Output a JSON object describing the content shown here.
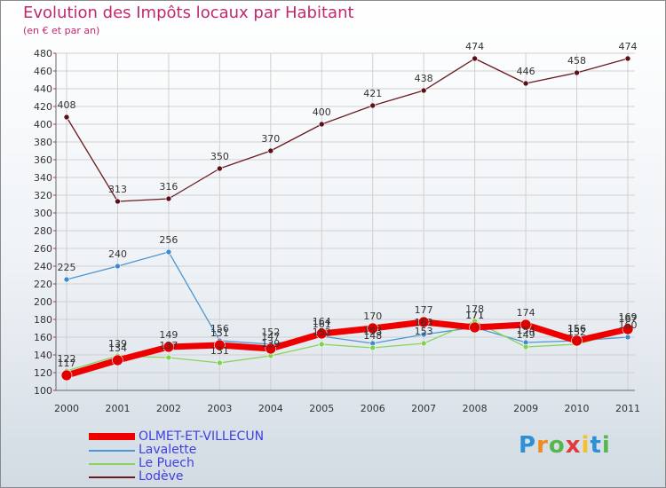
{
  "chart_data": {
    "type": "line",
    "title": "Evolution des Impôts locaux par Habitant",
    "subtitle": "(en € et par an)",
    "categories": [
      "2000",
      "2001",
      "2002",
      "2003",
      "2004",
      "2005",
      "2006",
      "2007",
      "2008",
      "2009",
      "2010",
      "2011"
    ],
    "ylim": [
      100,
      480
    ],
    "yticks": [
      100,
      120,
      140,
      160,
      180,
      200,
      220,
      240,
      260,
      280,
      300,
      320,
      340,
      360,
      380,
      400,
      420,
      440,
      460,
      480
    ],
    "grid": true,
    "legend_position": "bottom-left",
    "series": [
      {
        "name": "Lodève",
        "color": "#6b1a1f",
        "values": [
          408,
          313,
          316,
          350,
          370,
          400,
          421,
          438,
          474,
          446,
          458,
          474
        ]
      },
      {
        "name": "Lavalette",
        "color": "#4f97d2",
        "values": [
          225,
          240,
          256,
          156,
          152,
          161,
          153,
          163,
          171,
          154,
          156,
          160
        ]
      },
      {
        "name": "Le Puech",
        "color": "#88d45a",
        "values": [
          122,
          139,
          137,
          131,
          139,
          152,
          148,
          153,
          178,
          149,
          152,
          167
        ]
      },
      {
        "name": "OLMET-ET-VILLECUN",
        "color": "#ee0000",
        "values": [
          117,
          134,
          149,
          151,
          147,
          164,
          170,
          177,
          171,
          174,
          156,
          169
        ]
      }
    ],
    "data_labels": [
      {
        "series": "Lodève",
        "text": [
          "408",
          "313",
          "316",
          "350",
          "370",
          "400",
          "421",
          "438",
          "474",
          "446",
          "458",
          "474"
        ]
      },
      {
        "series": "Lavalette",
        "text": [
          "225",
          "240",
          "256",
          "156",
          "152",
          "161",
          "153",
          "163",
          "171",
          "154",
          "156",
          "160"
        ]
      },
      {
        "series": "Le Puech",
        "text": [
          "122",
          "139",
          "137",
          "131",
          "139",
          "152",
          "148",
          "153",
          "178",
          "149",
          "152",
          "167"
        ]
      },
      {
        "series": "OLMET-ET-VILLECUN",
        "text": [
          "117",
          "134",
          "149",
          "151",
          "147",
          "164",
          "170",
          "177",
          "171",
          "174",
          "156",
          "169"
        ]
      }
    ]
  },
  "legend": [
    {
      "name": "OLMET-ET-VILLECUN",
      "color": "#ee0000",
      "label_color": "#3f3fe0"
    },
    {
      "name": "Lavalette",
      "color": "#4f97d2",
      "label_color": "#3f3fe0"
    },
    {
      "name": "Le Puech",
      "color": "#88d45a",
      "label_color": "#3f3fe0"
    },
    {
      "name": "Lodève",
      "color": "#6b1a1f",
      "label_color": "#3f3fe0"
    }
  ],
  "logo": {
    "letters": [
      "P",
      "r",
      "o",
      "x",
      "i",
      "t",
      "i"
    ],
    "colors": [
      "#2e8fd6",
      "#f08a1c",
      "#58b64e",
      "#e23a3a",
      "#f2c228",
      "#2e8fd6",
      "#58b64e"
    ]
  }
}
